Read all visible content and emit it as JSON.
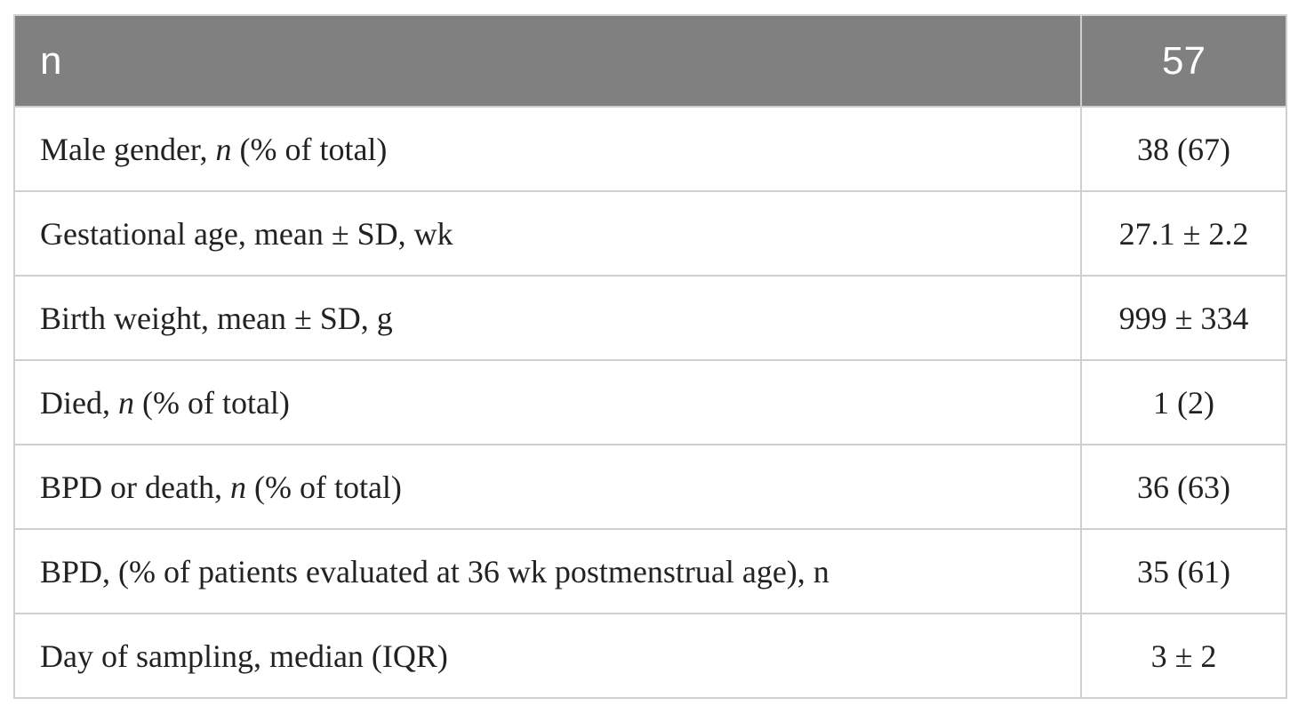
{
  "header": {
    "label": "n",
    "value": "57"
  },
  "rows": [
    {
      "pre": "Male gender, ",
      "ital": "n",
      "post": " (% of total)",
      "value": "38 (67)"
    },
    {
      "pre": "Gestational age, mean ± SD, wk",
      "ital": "",
      "post": "",
      "value": "27.1 ± 2.2"
    },
    {
      "pre": "Birth weight, mean ± SD, g",
      "ital": "",
      "post": "",
      "value": "999 ± 334"
    },
    {
      "pre": "Died, ",
      "ital": "n",
      "post": " (% of total)",
      "value": "1 (2)"
    },
    {
      "pre": "BPD or death, ",
      "ital": "n",
      "post": " (% of total)",
      "value": "36 (63)"
    },
    {
      "pre": "BPD, (% of patients evaluated at 36 wk postmenstrual age), n",
      "ital": "",
      "post": "",
      "value": "35 (61)"
    },
    {
      "pre": "Day of sampling, median (IQR)",
      "ital": "",
      "post": "",
      "value": "3 ± 2"
    }
  ],
  "colors": {
    "header_bg": "#808080",
    "header_text": "#ffffff",
    "border": "#cfcfcf",
    "body_text": "#222222"
  }
}
